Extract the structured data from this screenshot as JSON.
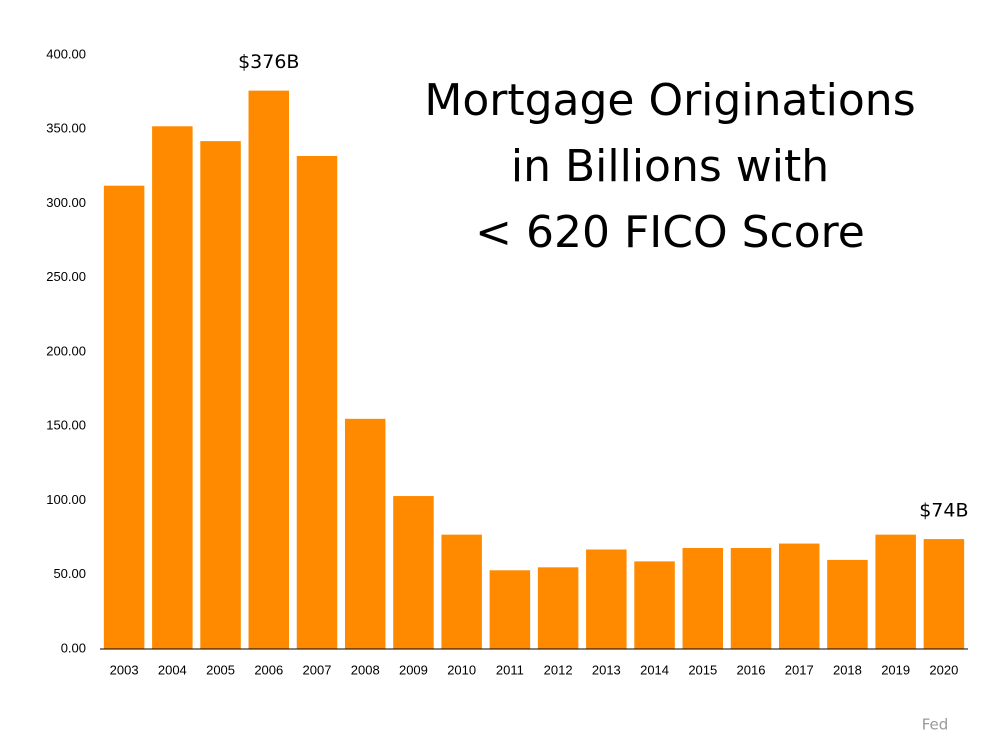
{
  "chart_data": {
    "type": "bar",
    "title": [
      "Mortgage Originations",
      "in Billions with",
      "< 620 FICO Score"
    ],
    "categories": [
      "2003",
      "2004",
      "2005",
      "2006",
      "2007",
      "2008",
      "2009",
      "2010",
      "2011",
      "2012",
      "2013",
      "2014",
      "2015",
      "2016",
      "2017",
      "2018",
      "2019",
      "2020"
    ],
    "values": [
      312,
      352,
      342,
      376,
      332,
      155,
      103,
      77,
      53,
      55,
      67,
      59,
      68,
      68,
      71,
      60,
      77,
      74
    ],
    "value_labels": [
      null,
      null,
      null,
      "$376B",
      null,
      null,
      null,
      null,
      null,
      null,
      null,
      null,
      null,
      null,
      null,
      null,
      null,
      "$74B"
    ],
    "color": "#ff8a00",
    "ylim": [
      0,
      400
    ],
    "yticks": [
      {
        "value": 0,
        "label": "0.00"
      },
      {
        "value": 50,
        "label": "50.00"
      },
      {
        "value": 100,
        "label": "100.00"
      },
      {
        "value": 150,
        "label": "150.00"
      },
      {
        "value": 200,
        "label": "200.00"
      },
      {
        "value": 250,
        "label": "250.00"
      },
      {
        "value": 300,
        "label": "300.00"
      },
      {
        "value": 350,
        "label": "350.00"
      },
      {
        "value": 400,
        "label": "400.00"
      }
    ],
    "grid": false,
    "source": "Fed"
  }
}
